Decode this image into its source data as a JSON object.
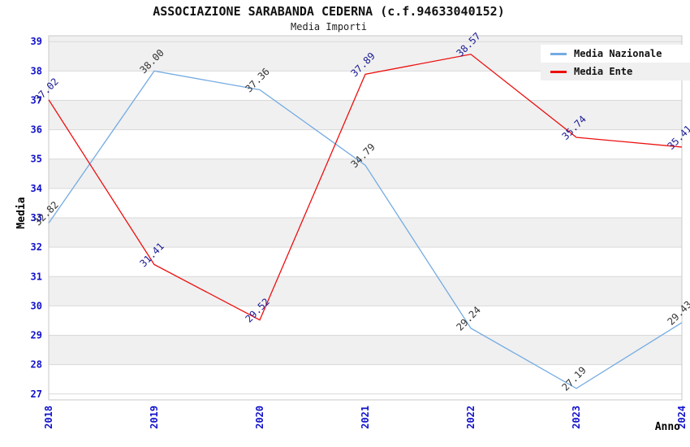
{
  "chart_data": {
    "type": "line",
    "title": "ASSOCIAZIONE SARABANDA CEDERNA (c.f.94633040152)",
    "subtitle": "Media Importi",
    "xlabel": "Anno",
    "ylabel": "Media",
    "categories": [
      "2018",
      "2019",
      "2020",
      "2021",
      "2022",
      "2023",
      "2024"
    ],
    "ylim": [
      27,
      39
    ],
    "ytick_step": 1,
    "grid": "horizontal-bands",
    "legend_position": "top-right",
    "series": [
      {
        "name": "Media Nazionale",
        "color": "#74abe2",
        "label_color": "#333333",
        "values": [
          32.82,
          38.0,
          37.36,
          34.79,
          29.24,
          27.19,
          29.43
        ]
      },
      {
        "name": "Media Ente",
        "color": "#ee0e0e",
        "label_color": "#1a1a96",
        "values": [
          37.02,
          31.41,
          29.52,
          37.89,
          38.57,
          35.74,
          35.41
        ]
      }
    ],
    "colors": {
      "tick_label": "#1212cc",
      "band": "#f0f0f0",
      "gridline": "#d9d9d9",
      "plot_border": "#c9c9c9",
      "axis_title": "#000000"
    }
  }
}
